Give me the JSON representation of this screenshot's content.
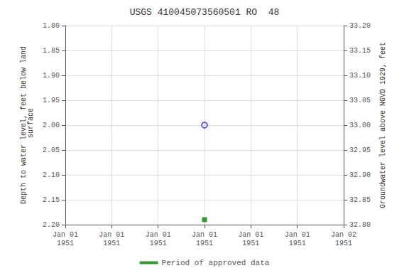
{
  "chart_data": {
    "type": "scatter",
    "title": "USGS 410045073560501 RO  48",
    "ylabel": "Depth to water level, feet below land\n surface",
    "y2label": "Groundwater level above NGVD 1929, feet",
    "categories": [
      "Jan 01\n1951",
      "Jan 01\n1951",
      "Jan 01\n1951",
      "Jan 01\n1951",
      "Jan 01\n1951",
      "Jan 01\n1951",
      "Jan 02\n1951"
    ],
    "series": [
      {
        "color": "#0000ff",
        "marker": "circle_open",
        "values": [
          null,
          null,
          null,
          2.0,
          null,
          null,
          null
        ]
      },
      {
        "name": "Period of approved data",
        "color": "#008000",
        "marker": "square",
        "values": [
          null,
          null,
          null,
          2.19,
          null,
          null,
          null
        ]
      }
    ],
    "ylim": [
      2.2,
      1.8
    ],
    "yticks": [
      {
        "value": 1.8,
        "label": "1.80"
      },
      {
        "value": 1.85,
        "label": "1.85"
      },
      {
        "value": 1.9,
        "label": "1.90"
      },
      {
        "value": 1.95,
        "label": "1.95"
      },
      {
        "value": 2.0,
        "label": "2.00"
      },
      {
        "value": 2.05,
        "label": "2.05"
      },
      {
        "value": 2.1,
        "label": "2.10"
      },
      {
        "value": 2.15,
        "label": "2.15"
      },
      {
        "value": 2.2,
        "label": "2.20"
      }
    ],
    "y2lim": [
      32.8,
      33.2
    ],
    "y2ticks": [
      {
        "value": 32.8,
        "label": "32.80"
      },
      {
        "value": 32.85,
        "label": "32.85"
      },
      {
        "value": 32.9,
        "label": "32.90"
      },
      {
        "value": 32.95,
        "label": "32.95"
      },
      {
        "value": 33.0,
        "label": "33.00"
      },
      {
        "value": 33.05,
        "label": "33.05"
      },
      {
        "value": 33.1,
        "label": "33.10"
      },
      {
        "value": 33.15,
        "label": "33.15"
      },
      {
        "value": 33.2,
        "label": "33.20"
      }
    ],
    "grid": true,
    "legend": "bottom"
  }
}
